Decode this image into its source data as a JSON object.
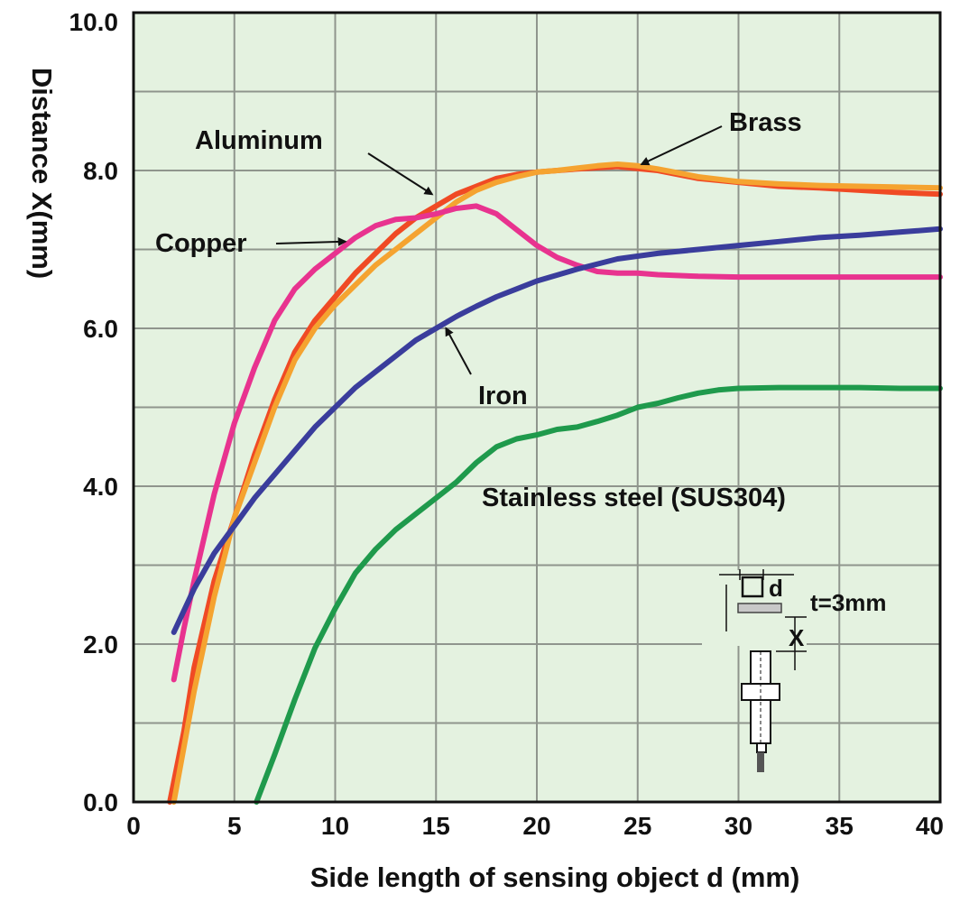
{
  "chart_data": {
    "type": "line",
    "xlabel": "Side length of sensing object d (mm)",
    "ylabel": "Distance X(mm)",
    "xlim": [
      0,
      40
    ],
    "ylim": [
      0,
      10
    ],
    "xticks": [
      "0",
      "5",
      "10",
      "15",
      "20",
      "25",
      "30",
      "35",
      "40"
    ],
    "yticks": [
      "0.0",
      "2.0",
      "4.0",
      "6.0",
      "8.0",
      "10.0"
    ],
    "grid": true,
    "background": "#e4f2e0",
    "series": [
      {
        "name": "Aluminum",
        "color": "#f04a24",
        "x": [
          1.8,
          2.5,
          3,
          4,
          5,
          6,
          7,
          8,
          9,
          10,
          11,
          12,
          13,
          14,
          15,
          16,
          17,
          18,
          19,
          20,
          22,
          24,
          26,
          28,
          30,
          32,
          34,
          36,
          38,
          40
        ],
        "y": [
          0.0,
          0.9,
          1.7,
          2.8,
          3.6,
          4.4,
          5.1,
          5.7,
          6.1,
          6.4,
          6.7,
          6.95,
          7.2,
          7.4,
          7.55,
          7.7,
          7.8,
          7.9,
          7.95,
          7.98,
          8.02,
          8.05,
          8.0,
          7.9,
          7.85,
          7.8,
          7.78,
          7.75,
          7.72,
          7.7
        ]
      },
      {
        "name": "Brass",
        "color": "#f5a330",
        "x": [
          2.0,
          2.5,
          3,
          4,
          5,
          6,
          7,
          8,
          9,
          10,
          11,
          12,
          13,
          14,
          15,
          16,
          17,
          18,
          19,
          20,
          21,
          22,
          23,
          24,
          25,
          26,
          27,
          28,
          30,
          32,
          34,
          36,
          38,
          40
        ],
        "y": [
          0.0,
          0.7,
          1.4,
          2.6,
          3.6,
          4.3,
          5.0,
          5.6,
          6.0,
          6.3,
          6.55,
          6.8,
          7.0,
          7.2,
          7.4,
          7.6,
          7.75,
          7.85,
          7.92,
          7.98,
          8.0,
          8.03,
          8.06,
          8.08,
          8.06,
          8.02,
          7.97,
          7.92,
          7.86,
          7.83,
          7.81,
          7.8,
          7.79,
          7.78
        ]
      },
      {
        "name": "Copper",
        "color": "#e8338f",
        "x": [
          2.0,
          2.5,
          3,
          4,
          5,
          6,
          7,
          8,
          9,
          10,
          11,
          12,
          13,
          14,
          15,
          16,
          17,
          18,
          19,
          20,
          21,
          22,
          23,
          24,
          25,
          26,
          28,
          30,
          32,
          35,
          38,
          40
        ],
        "y": [
          1.55,
          2.2,
          2.8,
          3.9,
          4.8,
          5.5,
          6.1,
          6.5,
          6.75,
          6.95,
          7.15,
          7.3,
          7.38,
          7.4,
          7.45,
          7.52,
          7.55,
          7.45,
          7.25,
          7.05,
          6.9,
          6.8,
          6.72,
          6.7,
          6.7,
          6.68,
          6.66,
          6.65,
          6.65,
          6.65,
          6.65,
          6.65
        ]
      },
      {
        "name": "Iron",
        "color": "#3a3d9c",
        "x": [
          2.0,
          3,
          4,
          5,
          6,
          7,
          8,
          9,
          10,
          11,
          12,
          13,
          14,
          15,
          16,
          17,
          18,
          19,
          20,
          22,
          24,
          26,
          28,
          30,
          32,
          34,
          36,
          38,
          40
        ],
        "y": [
          2.15,
          2.7,
          3.15,
          3.5,
          3.85,
          4.15,
          4.45,
          4.75,
          5.0,
          5.25,
          5.45,
          5.65,
          5.85,
          6.0,
          6.15,
          6.28,
          6.4,
          6.5,
          6.6,
          6.75,
          6.88,
          6.95,
          7.0,
          7.05,
          7.1,
          7.15,
          7.18,
          7.22,
          7.26
        ]
      },
      {
        "name": "Stainless steel (SUS304)",
        "color": "#1f9a4c",
        "x": [
          6.1,
          7,
          8,
          9,
          10,
          11,
          12,
          13,
          14,
          15,
          16,
          17,
          18,
          19,
          20,
          21,
          22,
          23,
          24,
          25,
          26,
          27,
          28,
          29,
          30,
          32,
          34,
          36,
          38,
          40
        ],
        "y": [
          0.0,
          0.6,
          1.3,
          1.95,
          2.45,
          2.9,
          3.2,
          3.45,
          3.65,
          3.85,
          4.05,
          4.3,
          4.5,
          4.6,
          4.65,
          4.72,
          4.75,
          4.82,
          4.9,
          5.0,
          5.05,
          5.12,
          5.18,
          5.22,
          5.24,
          5.25,
          5.25,
          5.25,
          5.24,
          5.24
        ]
      }
    ],
    "annotations": [
      {
        "id": "aluminum",
        "text": "Aluminum",
        "arrow_to": [
          14.8,
          7.7
        ]
      },
      {
        "id": "brass",
        "text": "Brass",
        "arrow_to": [
          25.2,
          8.08
        ]
      },
      {
        "id": "copper",
        "text": "Copper",
        "arrow_to": [
          10.5,
          7.1
        ]
      },
      {
        "id": "iron",
        "text": "Iron",
        "arrow_to": [
          15.5,
          6.0
        ]
      },
      {
        "id": "sus",
        "text": "Stainless steel (SUS304)",
        "arrow_to": null
      }
    ],
    "inset": {
      "d_label": "d",
      "t_label": "t=3mm",
      "x_label": "X"
    }
  }
}
